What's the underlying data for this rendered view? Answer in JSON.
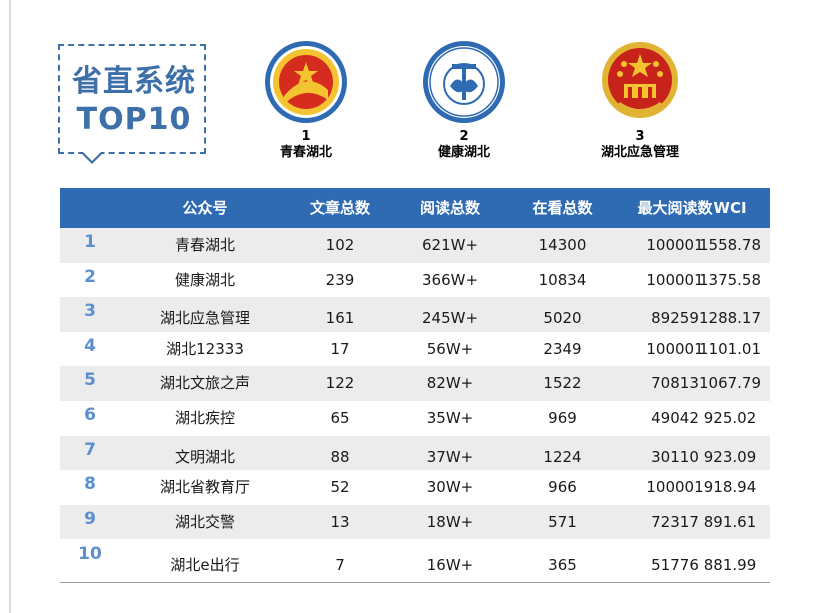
{
  "title": {
    "line1": "省直系统",
    "line2": "TOP10"
  },
  "top3": [
    {
      "rank": "1",
      "name": "青春湖北",
      "logo": "youth-league-emblem-icon"
    },
    {
      "rank": "2",
      "name": "健康湖北",
      "logo": "hubei-health-commission-emblem-icon"
    },
    {
      "rank": "3",
      "name": "湖北应急管理",
      "logo": "national-emblem-icon"
    }
  ],
  "table": {
    "headers": [
      "公众号",
      "文章总数",
      "阅读总数",
      "在看总数",
      "最大阅读数",
      "WCI"
    ],
    "rows": [
      {
        "rank": "1",
        "name": "青春湖北",
        "articles": "102",
        "reads": "621W+",
        "watching": "14300",
        "max_reads": "100001",
        "wci": "1558.78"
      },
      {
        "rank": "2",
        "name": "健康湖北",
        "articles": "239",
        "reads": "366W+",
        "watching": "10834",
        "max_reads": "100001",
        "wci": "1375.58"
      },
      {
        "rank": "3",
        "name": "湖北应急管理",
        "articles": "161",
        "reads": "245W+",
        "watching": "5020",
        "max_reads": "89259",
        "wci": "1288.17"
      },
      {
        "rank": "4",
        "name": "湖北12333",
        "articles": "17",
        "reads": "56W+",
        "watching": "2349",
        "max_reads": "100001",
        "wci": "1101.01"
      },
      {
        "rank": "5",
        "name": "湖北文旅之声",
        "articles": "122",
        "reads": "82W+",
        "watching": "1522",
        "max_reads": "70813",
        "wci": "1067.79"
      },
      {
        "rank": "6",
        "name": "湖北疾控",
        "articles": "65",
        "reads": "35W+",
        "watching": "969",
        "max_reads": "49042",
        "wci": "925.02"
      },
      {
        "rank": "7",
        "name": "文明湖北",
        "articles": "88",
        "reads": "37W+",
        "watching": "1224",
        "max_reads": "30110",
        "wci": "923.09"
      },
      {
        "rank": "8",
        "name": "湖北省教育厅",
        "articles": "52",
        "reads": "30W+",
        "watching": "966",
        "max_reads": "100001",
        "wci": "918.94"
      },
      {
        "rank": "9",
        "name": "湖北交警",
        "articles": "13",
        "reads": "18W+",
        "watching": "571",
        "max_reads": "72317",
        "wci": "891.61"
      },
      {
        "rank": "10",
        "name": "湖北e出行",
        "articles": "7",
        "reads": "16W+",
        "watching": "365",
        "max_reads": "51776",
        "wci": "881.99"
      }
    ]
  },
  "colors": {
    "accent": "#2f6bb3",
    "rank": "#5b8fd1",
    "shade": "#ececec",
    "title": "#3d6fa8"
  }
}
